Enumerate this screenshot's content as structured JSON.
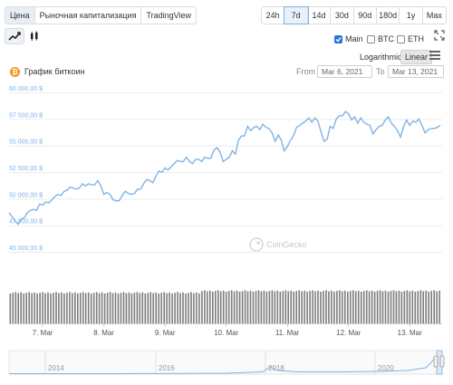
{
  "tabs": [
    {
      "label": "Цена",
      "active": true
    },
    {
      "label": "Рыночная капитализация",
      "active": false
    },
    {
      "label": "TradingView",
      "active": false
    }
  ],
  "ranges": [
    {
      "label": "24h",
      "active": false
    },
    {
      "label": "7d",
      "active": true
    },
    {
      "label": "14d",
      "active": false
    },
    {
      "label": "30d",
      "active": false
    },
    {
      "label": "90d",
      "active": false
    },
    {
      "label": "180d",
      "active": false
    },
    {
      "label": "1y",
      "active": false
    },
    {
      "label": "Max",
      "active": false
    }
  ],
  "checkboxes": [
    {
      "label": "Main",
      "checked": true
    },
    {
      "label": "BTC",
      "checked": false
    },
    {
      "label": "ETH",
      "checked": false
    }
  ],
  "scale": {
    "label": "Logarithmic",
    "active": "Linear"
  },
  "title": "График биткоин",
  "date_range": {
    "from_label": "From",
    "from": "Mar 6, 2021",
    "to_label": "To",
    "to": "Mar 13, 2021"
  },
  "watermark": "CoinGecko",
  "colors": {
    "line": "#7fb3e8",
    "volume": "#7d7d7d",
    "grid": "#ececec",
    "accent": "#2a73d9"
  },
  "chart_data": {
    "type": "line",
    "title": "График биткоин",
    "y_ticks": [
      "60 000,00 $",
      "57 500,00 $",
      "55 000,00 $",
      "52 500,00 $",
      "50 000,00 $",
      "47 500,00 $",
      "45 000,00 $"
    ],
    "y_tick_values": [
      60000,
      57500,
      55000,
      52500,
      50000,
      47500,
      45000
    ],
    "ylim": [
      45000,
      60000
    ],
    "x_ticks": [
      "7. Mar",
      "8. Mar",
      "9. Mar",
      "10. Mar",
      "11. Mar",
      "12. Mar",
      "13. Mar"
    ],
    "x_tick_values": [
      1,
      2,
      3,
      4,
      5,
      6,
      7
    ],
    "xlim": [
      0.45,
      7.53
    ],
    "series": [
      {
        "x": [
          0.45,
          0.5,
          0.55,
          0.6,
          0.65,
          0.7,
          0.75,
          0.8,
          0.85,
          0.9,
          0.95,
          1.0,
          1.05,
          1.1,
          1.15,
          1.2,
          1.25,
          1.3,
          1.35,
          1.4,
          1.45,
          1.5,
          1.55,
          1.6,
          1.65,
          1.7,
          1.75,
          1.8,
          1.85,
          1.9,
          1.95,
          2.0,
          2.05,
          2.1,
          2.15,
          2.2,
          2.25,
          2.3,
          2.35,
          2.4,
          2.45,
          2.5,
          2.55,
          2.6,
          2.65,
          2.7,
          2.75,
          2.8,
          2.85,
          2.9,
          2.95,
          3.0,
          3.05,
          3.1,
          3.15,
          3.2,
          3.25,
          3.3,
          3.35,
          3.4,
          3.45,
          3.5,
          3.55,
          3.6,
          3.65,
          3.7,
          3.75,
          3.8,
          3.85,
          3.9,
          3.95,
          4.0,
          4.05,
          4.1,
          4.15,
          4.2,
          4.25,
          4.3,
          4.35,
          4.4,
          4.45,
          4.5,
          4.55,
          4.6,
          4.65,
          4.7,
          4.75,
          4.8,
          4.85,
          4.9,
          4.95,
          5.0,
          5.05,
          5.1,
          5.15,
          5.2,
          5.25,
          5.3,
          5.35,
          5.4,
          5.45,
          5.5,
          5.55,
          5.6,
          5.65,
          5.7,
          5.75,
          5.8,
          5.85,
          5.9,
          5.95,
          6.0,
          6.05,
          6.1,
          6.15,
          6.2,
          6.25,
          6.3,
          6.35,
          6.4,
          6.45,
          6.5,
          6.55,
          6.6,
          6.65,
          6.7,
          6.75,
          6.8,
          6.85,
          6.9,
          6.95,
          7.0,
          7.05,
          7.1,
          7.15,
          7.2,
          7.25,
          7.3,
          7.35,
          7.4,
          7.45,
          7.5
        ],
        "y": [
          48700,
          48300,
          47900,
          47600,
          48100,
          48200,
          48700,
          48900,
          49000,
          48900,
          49500,
          49400,
          49700,
          49600,
          49900,
          50200,
          50400,
          50300,
          50700,
          50800,
          51100,
          51000,
          50900,
          51000,
          51400,
          51200,
          51400,
          51300,
          51300,
          51700,
          51200,
          50400,
          50600,
          50400,
          49900,
          49800,
          49800,
          50300,
          50700,
          50500,
          50400,
          50500,
          50900,
          50900,
          51400,
          51800,
          51700,
          51500,
          52100,
          52600,
          52500,
          52900,
          52700,
          53000,
          53300,
          53600,
          53500,
          53500,
          53900,
          53500,
          53300,
          53700,
          53700,
          53500,
          53900,
          53800,
          53800,
          54600,
          54800,
          54400,
          53500,
          53700,
          53900,
          54500,
          54200,
          55500,
          55900,
          55900,
          56800,
          56400,
          56700,
          56800,
          56500,
          57000,
          56700,
          56600,
          56200,
          55400,
          56000,
          55500,
          54500,
          54900,
          55500,
          55900,
          56700,
          56900,
          57100,
          57300,
          57600,
          57200,
          57600,
          57300,
          56300,
          55400,
          55600,
          56800,
          56600,
          57500,
          57800,
          57800,
          58200,
          58000,
          57400,
          57700,
          57100,
          57600,
          57200,
          57000,
          56900,
          56100,
          56500,
          56800,
          56900,
          57400,
          57700,
          57100,
          56800,
          56400,
          55800,
          56800,
          57400,
          56900,
          57300,
          57200,
          57500,
          56900,
          56200,
          56500,
          56600,
          56600,
          56700,
          56900
        ]
      }
    ]
  }
}
